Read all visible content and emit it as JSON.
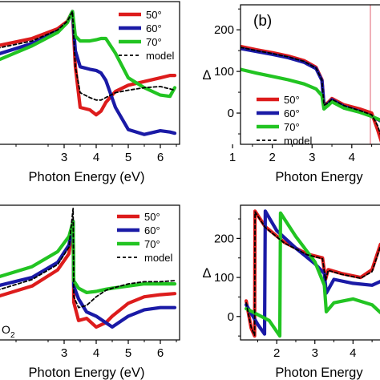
{
  "colors": {
    "s50": "#dd1c1c",
    "s60": "#1a1aa6",
    "s70": "#22c422",
    "model": "#000000",
    "marker": "#e06070"
  },
  "chart_data": [
    {
      "id": "top-left",
      "type": "line",
      "xlabel": "Photon Energy (eV)",
      "ylabel": "",
      "xlim": [
        0.9,
        6.6
      ],
      "ylim": [
        -0.08,
        1.08
      ],
      "xticks": [
        "3",
        "4",
        "5",
        "6"
      ],
      "x": [
        0.9,
        2.0,
        2.8,
        3.1,
        3.2,
        3.26,
        3.35,
        3.5,
        3.8,
        4.0,
        4.15,
        4.3,
        4.6,
        5.0,
        5.5,
        6.0,
        6.3,
        6.45
      ],
      "series": [
        {
          "name": "50°",
          "color_key": "s50",
          "values": [
            0.72,
            0.78,
            0.86,
            0.92,
            0.97,
            1.0,
            0.55,
            0.22,
            0.2,
            0.16,
            0.19,
            0.26,
            0.35,
            0.4,
            0.43,
            0.46,
            0.48,
            0.48
          ]
        },
        {
          "name": "60°",
          "color_key": "s60",
          "values": [
            0.65,
            0.74,
            0.84,
            0.91,
            0.97,
            1.0,
            0.68,
            0.55,
            0.53,
            0.52,
            0.5,
            0.44,
            0.22,
            0.04,
            0.0,
            0.03,
            0.02,
            0.01
          ]
        },
        {
          "name": "70°",
          "color_key": "s70",
          "values": [
            0.6,
            0.72,
            0.83,
            0.91,
            0.97,
            1.0,
            0.8,
            0.76,
            0.76,
            0.77,
            0.78,
            0.78,
            0.66,
            0.46,
            0.38,
            0.32,
            0.31,
            0.38
          ]
        },
        {
          "name": "model",
          "color_key": "model",
          "dashed": true,
          "values": [
            0.7,
            0.76,
            0.85,
            0.92,
            0.97,
            1.0,
            0.55,
            0.34,
            0.3,
            0.28,
            0.28,
            0.3,
            0.34,
            0.36,
            0.38,
            0.39,
            0.37,
            0.36
          ]
        }
      ],
      "fragment_text": ""
    },
    {
      "id": "top-right",
      "type": "line",
      "panel_label": "(b)",
      "xlabel": "Photon Energy",
      "ylabel": "Δ",
      "xlim": [
        1.2,
        4.75
      ],
      "ylim": [
        -75,
        260
      ],
      "xticks": [
        "1",
        "2",
        "3",
        "4"
      ],
      "yticks": [
        "0",
        "100",
        "200"
      ],
      "x": [
        1.2,
        1.6,
        2.0,
        2.4,
        2.8,
        3.1,
        3.25,
        3.3,
        3.4,
        3.5,
        3.8,
        4.2,
        4.5,
        4.65,
        4.75
      ],
      "series": [
        {
          "name": "50°",
          "color_key": "s50",
          "values": [
            160,
            152,
            145,
            137,
            126,
            110,
            80,
            20,
            25,
            35,
            20,
            10,
            0,
            -40,
            -70
          ]
        },
        {
          "name": "60°",
          "color_key": "s60",
          "values": [
            155,
            148,
            141,
            133,
            122,
            107,
            78,
            18,
            22,
            32,
            16,
            4,
            -8,
            -15,
            -20
          ]
        },
        {
          "name": "70°",
          "color_key": "s70",
          "values": [
            105,
            96,
            88,
            80,
            70,
            58,
            42,
            10,
            18,
            27,
            12,
            2,
            -8,
            -14,
            -18
          ]
        },
        {
          "name": "model",
          "color_key": "model",
          "dashed": true,
          "values": [
            158,
            150,
            143,
            135,
            124,
            108,
            79,
            19,
            24,
            33,
            18,
            6,
            -4,
            -30,
            -60
          ]
        }
      ]
    },
    {
      "id": "bottom-left",
      "type": "line",
      "xlabel": "Photon Energy (eV)",
      "ylabel": "",
      "xlim": [
        0.9,
        6.6
      ],
      "ylim": [
        -0.1,
        1.15
      ],
      "xticks": [
        "3",
        "4",
        "5",
        "6"
      ],
      "x": [
        0.9,
        2.0,
        2.8,
        3.15,
        3.28,
        3.3,
        3.45,
        3.7,
        4.0,
        4.3,
        4.5,
        5.0,
        5.5,
        6.0,
        6.45
      ],
      "series": [
        {
          "name": "50°",
          "color_key": "s50",
          "values": [
            0.3,
            0.4,
            0.55,
            0.7,
            1.0,
            0.25,
            0.08,
            0.1,
            0.02,
            0.06,
            0.12,
            0.24,
            0.3,
            0.32,
            0.33
          ]
        },
        {
          "name": "60°",
          "color_key": "s60",
          "values": [
            0.4,
            0.48,
            0.62,
            0.78,
            1.0,
            0.4,
            0.28,
            0.16,
            0.12,
            0.06,
            0.02,
            0.12,
            0.18,
            0.2,
            0.2
          ]
        },
        {
          "name": "70°",
          "color_key": "s70",
          "values": [
            0.48,
            0.58,
            0.72,
            0.86,
            1.0,
            0.45,
            0.38,
            0.34,
            0.35,
            0.37,
            0.38,
            0.4,
            0.42,
            0.42,
            0.42
          ]
        },
        {
          "name": "model",
          "color_key": "model",
          "dashed": true,
          "values": [
            0.36,
            0.46,
            0.6,
            0.76,
            1.12,
            0.3,
            0.2,
            0.22,
            0.3,
            0.36,
            0.38,
            0.42,
            0.44,
            0.44,
            0.45
          ]
        }
      ],
      "fragment_text": "O",
      "fragment_sub": "2"
    },
    {
      "id": "bottom-right",
      "type": "line",
      "xlabel": "Photon Energy",
      "ylabel": "Δ",
      "xlim": [
        1.05,
        4.75
      ],
      "ylim": [
        -60,
        285
      ],
      "xticks": [
        "2",
        "3",
        "4"
      ],
      "yticks": [
        "0",
        "100",
        "200"
      ],
      "series": [
        {
          "name": "50°",
          "color_key": "s50",
          "x": [
            1.2,
            1.33,
            1.42,
            1.43,
            1.7,
            2.2,
            2.8,
            3.2,
            3.28,
            3.35,
            3.7,
            4.2,
            4.5,
            4.72
          ],
          "values": [
            40,
            -30,
            -50,
            270,
            230,
            190,
            160,
            150,
            95,
            120,
            110,
            100,
            120,
            185
          ]
        },
        {
          "name": "60°",
          "color_key": "s60",
          "x": [
            1.2,
            1.5,
            1.68,
            1.7,
            2.0,
            2.5,
            3.0,
            3.25,
            3.3,
            3.5,
            4.0,
            4.5,
            4.72
          ],
          "values": [
            30,
            -20,
            -45,
            270,
            220,
            175,
            135,
            110,
            60,
            95,
            85,
            80,
            90
          ]
        },
        {
          "name": "70°",
          "color_key": "s70",
          "x": [
            1.2,
            1.8,
            2.08,
            2.1,
            2.5,
            3.0,
            3.25,
            3.3,
            3.5,
            4.0,
            4.5,
            4.72
          ],
          "values": [
            20,
            -10,
            -50,
            265,
            205,
            140,
            80,
            12,
            35,
            45,
            30,
            10
          ]
        },
        {
          "name": "model",
          "color_key": "model",
          "dashed": true,
          "x": [
            1.2,
            1.33,
            1.42,
            1.43,
            1.7,
            2.2,
            2.8,
            3.2,
            3.28,
            3.35,
            3.7,
            4.2,
            4.5,
            4.72
          ],
          "values": [
            35,
            -28,
            -48,
            268,
            228,
            188,
            158,
            148,
            93,
            118,
            108,
            98,
            115,
            180
          ]
        }
      ]
    }
  ]
}
